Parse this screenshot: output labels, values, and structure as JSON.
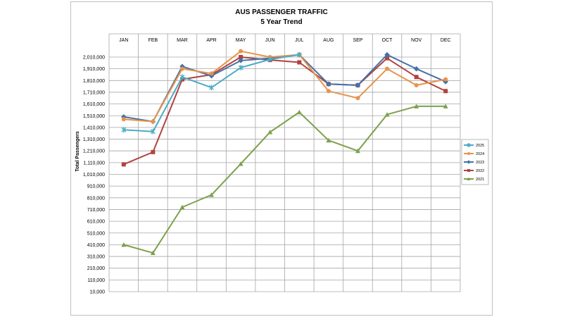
{
  "chart_data": {
    "type": "line",
    "title": "AUS PASSENGER TRAFFIC",
    "subtitle": "5 Year Trend",
    "xlabel": "",
    "ylabel": "Total Passengers",
    "categories": [
      "JAN",
      "FEB",
      "MAR",
      "APR",
      "MAY",
      "JUN",
      "JUL",
      "AUG",
      "SEP",
      "OCT",
      "NOV",
      "DEC"
    ],
    "ylim": [
      10000,
      2110000
    ],
    "yticks": [
      10000,
      110000,
      210000,
      310000,
      410000,
      510000,
      610000,
      710000,
      810000,
      910000,
      1010000,
      1110000,
      1210000,
      1310000,
      1410000,
      1510000,
      1610000,
      1710000,
      1810000,
      1910000,
      2010000
    ],
    "ytick_labels": [
      "10,000",
      "110,000",
      "210,000",
      "310,000",
      "410,000",
      "510,000",
      "610,000",
      "710,000",
      "810,000",
      "910,000",
      "1,010,000",
      "1,110,000",
      "1,210,000",
      "1,310,000",
      "1,410,000",
      "1,510,000",
      "1,610,000",
      "1,710,000",
      "1,810,000",
      "1,910,000",
      "2,010,000"
    ],
    "grid": "horizontal",
    "legend_position": "right",
    "series": [
      {
        "name": "2025",
        "color": "#4BACC6",
        "marker": "x",
        "values": [
          1390000,
          1375000,
          1840000,
          1750000,
          1920000,
          1990000,
          2030000,
          null,
          null,
          null,
          null,
          null
        ]
      },
      {
        "name": "2024",
        "color": "#E8934A",
        "marker": "circle",
        "values": [
          1480000,
          1460000,
          1910000,
          1870000,
          2060000,
          2010000,
          2030000,
          1720000,
          1660000,
          1910000,
          1770000,
          1820000
        ]
      },
      {
        "name": "2023",
        "color": "#4472A8",
        "marker": "diamond",
        "values": [
          1500000,
          1460000,
          1930000,
          1850000,
          1980000,
          2000000,
          2030000,
          1780000,
          1770000,
          2030000,
          1910000,
          1800000
        ]
      },
      {
        "name": "2022",
        "color": "#B0433F",
        "marker": "square",
        "values": [
          1095000,
          1200000,
          1820000,
          1860000,
          2010000,
          1985000,
          1965000,
          1780000,
          1770000,
          2000000,
          1840000,
          1720000
        ]
      },
      {
        "name": "2021",
        "color": "#7EA04D",
        "marker": "triangle",
        "values": [
          410000,
          340000,
          730000,
          835000,
          1100000,
          1370000,
          1540000,
          1300000,
          1210000,
          1520000,
          1590000,
          1590000
        ]
      }
    ]
  }
}
